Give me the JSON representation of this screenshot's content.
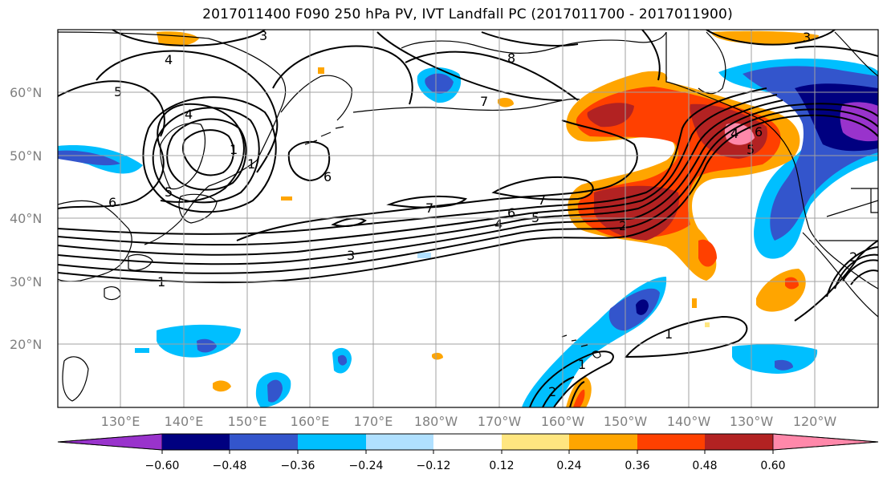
{
  "title": "2017011400 F090 250 hPa PV, IVT Landfall PC (2017011700 - 2017011900)",
  "map": {
    "lon_range": [
      120,
      250
    ],
    "lat_range": [
      10,
      70
    ],
    "lat_labels": [
      "20°N",
      "30°N",
      "40°N",
      "50°N",
      "60°N"
    ],
    "lon_labels": [
      "130°E",
      "140°E",
      "150°E",
      "160°E",
      "170°E",
      "180°W",
      "170°W",
      "160°W",
      "150°W",
      "140°W",
      "130°W",
      "120°W"
    ],
    "gridlines": true
  },
  "colorbar": {
    "ticks": [
      "−0.60",
      "−0.48",
      "−0.36",
      "−0.24",
      "−0.12",
      "0.12",
      "0.24",
      "0.36",
      "0.48",
      "0.60"
    ],
    "colors": [
      "#9933cc",
      "#000080",
      "#3355cc",
      "#00bfff",
      "#b0e0ff",
      "#ffffff",
      "#ffe680",
      "#ffa500",
      "#ff4000",
      "#b22222",
      "#ff88aa"
    ],
    "extend": "both"
  },
  "contour_labels": [
    "3",
    "4",
    "5",
    "8",
    "7",
    "1",
    "4",
    "5",
    "6",
    "6",
    "1",
    "7",
    "7",
    "6",
    "5",
    "4",
    "2",
    "3",
    "1",
    "1",
    "1",
    "2",
    "2",
    "3",
    "5",
    "4",
    "6"
  ]
}
